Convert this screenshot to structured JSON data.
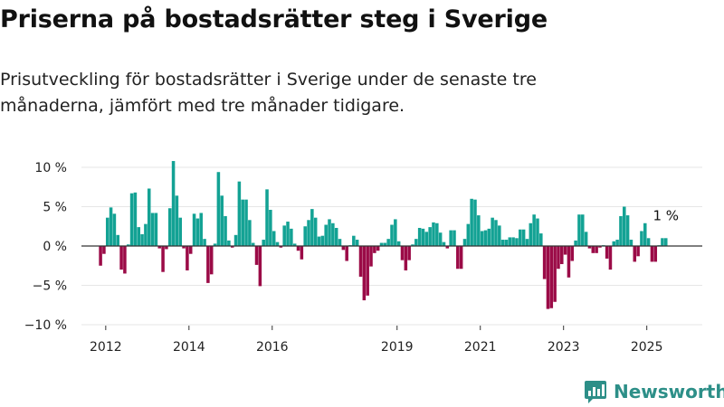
{
  "title": "Priserna på bostadsrätter steg i Sverige",
  "subtitle": "Prisutveckling för bostadsrätter i Sverige under de senaste tre månaderna, jämfört med tre månader tidigare.",
  "brand": {
    "name": "Newsworthy"
  },
  "colors": {
    "positive": "#13a294",
    "negative": "#9b0b47",
    "grid": "#e6e6e6",
    "axis": "#333333",
    "brand": "#2d8f88"
  },
  "chart_data": {
    "type": "bar",
    "title": "Priserna på bostadsrätter steg i Sverige",
    "subtitle": "Prisutveckling för bostadsrätter i Sverige under de senaste tre månaderna, jämfört med tre månader tidigare.",
    "x_start": "2011-11",
    "x_range": [
      "2011-06",
      "2026-05"
    ],
    "ylim": [
      -10,
      10
    ],
    "yticks": [
      10,
      5,
      0,
      -5,
      -10
    ],
    "ytick_labels": [
      "10 %",
      "5 %",
      "0 %",
      "−5 %",
      "−10 %"
    ],
    "xticks": [
      "2012",
      "2014",
      "2016",
      "2019",
      "2021",
      "2023",
      "2025"
    ],
    "grid": true,
    "annotation": {
      "text": "1 %",
      "at": "last"
    },
    "values": [
      -2.5,
      -1.0,
      3.6,
      4.9,
      4.1,
      1.4,
      -3.0,
      -3.5,
      0.2,
      6.7,
      6.8,
      2.4,
      1.5,
      2.8,
      7.3,
      4.2,
      4.2,
      -0.3,
      -3.3,
      -0.4,
      4.8,
      10.8,
      6.4,
      3.6,
      -0.3,
      -3.1,
      -1.0,
      4.1,
      3.5,
      4.2,
      0.9,
      -4.7,
      -3.6,
      0.3,
      9.4,
      6.4,
      3.8,
      0.7,
      -0.2,
      1.4,
      8.2,
      5.9,
      5.9,
      3.3,
      0.4,
      -2.4,
      -5.1,
      0.8,
      7.2,
      4.6,
      1.9,
      0.5,
      -0.2,
      2.6,
      3.1,
      2.2,
      0.3,
      -0.6,
      -1.7,
      2.5,
      3.3,
      4.7,
      3.6,
      1.2,
      1.3,
      2.7,
      3.4,
      2.9,
      2.3,
      0.9,
      -0.5,
      -1.9,
      0.1,
      1.3,
      0.8,
      -3.9,
      -6.9,
      -6.3,
      -2.6,
      -0.9,
      -0.6,
      0.4,
      0.4,
      0.9,
      2.7,
      3.4,
      0.6,
      -1.8,
      -3.1,
      -1.8,
      0.2,
      0.9,
      2.3,
      2.2,
      1.8,
      2.4,
      3.0,
      2.9,
      1.7,
      0.5,
      -0.3,
      2.0,
      2.0,
      -2.9,
      -2.9,
      0.9,
      2.8,
      6.0,
      5.9,
      3.9,
      1.9,
      2.0,
      2.2,
      3.6,
      3.3,
      2.6,
      0.8,
      0.8,
      1.1,
      1.1,
      1.0,
      2.1,
      2.1,
      0.9,
      2.9,
      4.0,
      3.5,
      1.6,
      -4.2,
      -8.0,
      -7.9,
      -7.1,
      -2.9,
      -2.3,
      -1.1,
      -4.0,
      -1.9,
      0.7,
      4.0,
      4.0,
      1.8,
      -0.3,
      -0.9,
      -0.9,
      -0.2,
      0.1,
      -1.6,
      -3.0,
      0.6,
      0.8,
      3.8,
      5.0,
      3.9,
      0.8,
      -2.0,
      -1.3,
      1.9,
      2.9,
      1.0,
      -2.0,
      -2.0,
      0.1,
      1.0,
      1.0
    ]
  }
}
